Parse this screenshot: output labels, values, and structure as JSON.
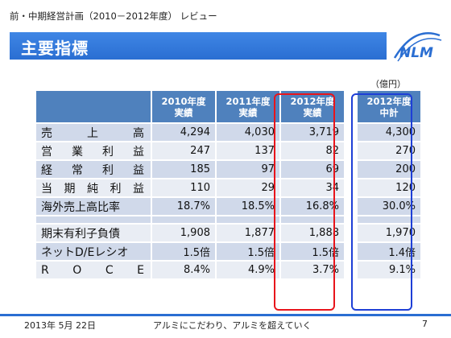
{
  "header": {
    "caption": "前・中期経営計画（2010－2012年度） レビュー",
    "title": "主要指標",
    "logo_text": "NLM"
  },
  "unit": "（億円）",
  "table": {
    "columns": [
      {
        "line1": "2010年度",
        "line2": "実績"
      },
      {
        "line1": "2011年度",
        "line2": "実績"
      },
      {
        "line1": "2012年度",
        "line2": "実績"
      },
      {
        "line1": "2012年度",
        "line2": "中計"
      }
    ],
    "rows": [
      {
        "label_chars": [
          "売",
          "上",
          "高"
        ],
        "values": [
          "4,294",
          "4,030",
          "3,719",
          "4,300"
        ]
      },
      {
        "label_chars": [
          "営",
          "業",
          "利",
          "益"
        ],
        "values": [
          "247",
          "137",
          "82",
          "270"
        ]
      },
      {
        "label_chars": [
          "経",
          "常",
          "利",
          "益"
        ],
        "values": [
          "185",
          "97",
          "69",
          "200"
        ]
      },
      {
        "label_chars": [
          "当",
          "期",
          "純",
          "利",
          "益"
        ],
        "values": [
          "110",
          "29",
          "34",
          "120"
        ]
      },
      {
        "label_chars": [
          "海外売上高比率"
        ],
        "values": [
          "18.7%",
          "18.5%",
          "16.8%",
          "30.0%"
        ]
      },
      {
        "label_chars": [
          "期末有利子負債"
        ],
        "values": [
          "1,908",
          "1,877",
          "1,888",
          "1,970"
        ]
      },
      {
        "label_chars": [
          "ネットD/Eレシオ"
        ],
        "values": [
          "1.5倍",
          "1.5倍",
          "1.5倍",
          "1.4倍"
        ]
      },
      {
        "label_chars": [
          "R",
          "O",
          "C",
          "E"
        ],
        "values": [
          "8.4%",
          "4.9%",
          "3.7%",
          "9.1%"
        ]
      }
    ]
  },
  "footer": {
    "date": "2013年 5月 22日",
    "slogan": "アルミにこだわり、アルミを超えていく",
    "page": "7"
  },
  "colors": {
    "header_blue": "#2a6ed2",
    "table_header": "#4f81bd",
    "highlight_red": "#e8141b",
    "highlight_blue": "#1e3fd6"
  }
}
